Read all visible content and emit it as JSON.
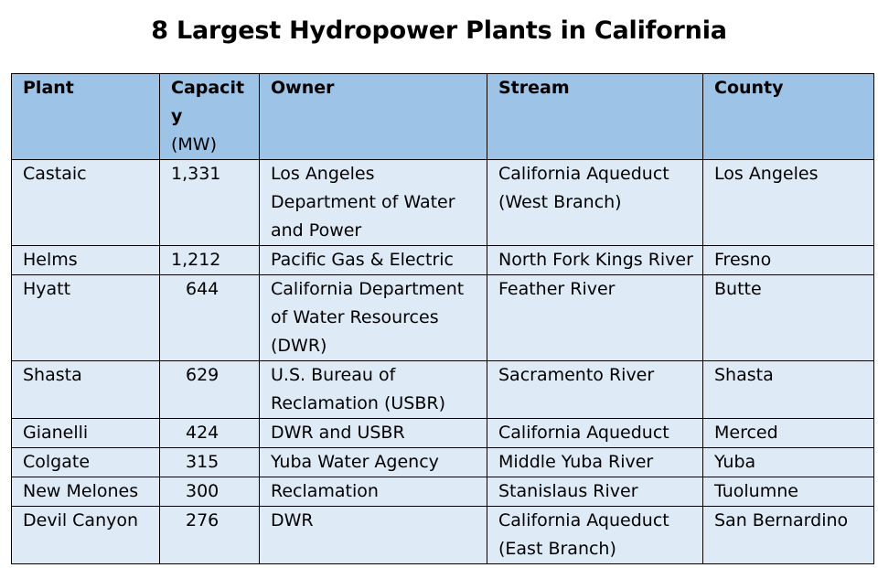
{
  "title": "8 Largest Hydropower Plants in California",
  "table": {
    "headers": {
      "plant": "Plant",
      "capacity": "Capacity",
      "capacity_unit": "(MW)",
      "owner": "Owner",
      "stream": "Stream",
      "county": "County"
    },
    "rows": [
      {
        "plant": "Castaic",
        "capacity": "1,331",
        "owner": "Los Angeles Department of Water and Power",
        "stream": "California Aqueduct (West Branch)",
        "county": "Los Angeles"
      },
      {
        "plant": "Helms",
        "capacity": "1,212",
        "owner": "Pacific Gas & Electric",
        "stream": "North Fork Kings River",
        "county": "Fresno"
      },
      {
        "plant": "Hyatt",
        "capacity": "644",
        "owner": "California Department of Water Resources (DWR)",
        "stream": "Feather River",
        "county": "Butte"
      },
      {
        "plant": "Shasta",
        "capacity": "629",
        "owner": "U.S. Bureau of Reclamation (USBR)",
        "stream": "Sacramento River",
        "county": "Shasta"
      },
      {
        "plant": "Gianelli",
        "capacity": "424",
        "owner": "DWR and USBR",
        "stream": "California Aqueduct",
        "county": "Merced"
      },
      {
        "plant": "Colgate",
        "capacity": "315",
        "owner": "Yuba Water Agency",
        "stream": "Middle Yuba River",
        "county": "Yuba"
      },
      {
        "plant": "New Melones",
        "capacity": "300",
        "owner": "Reclamation",
        "stream": "Stanislaus River",
        "county": "Tuolumne"
      },
      {
        "plant": "Devil Canyon",
        "capacity": "276",
        "owner": "DWR",
        "stream": "California Aqueduct (East Branch)",
        "county": "San Bernardino"
      }
    ]
  },
  "colors": {
    "header_bg": "#9dc3e6",
    "row_bg": "#deeaf6",
    "border": "#000000"
  }
}
